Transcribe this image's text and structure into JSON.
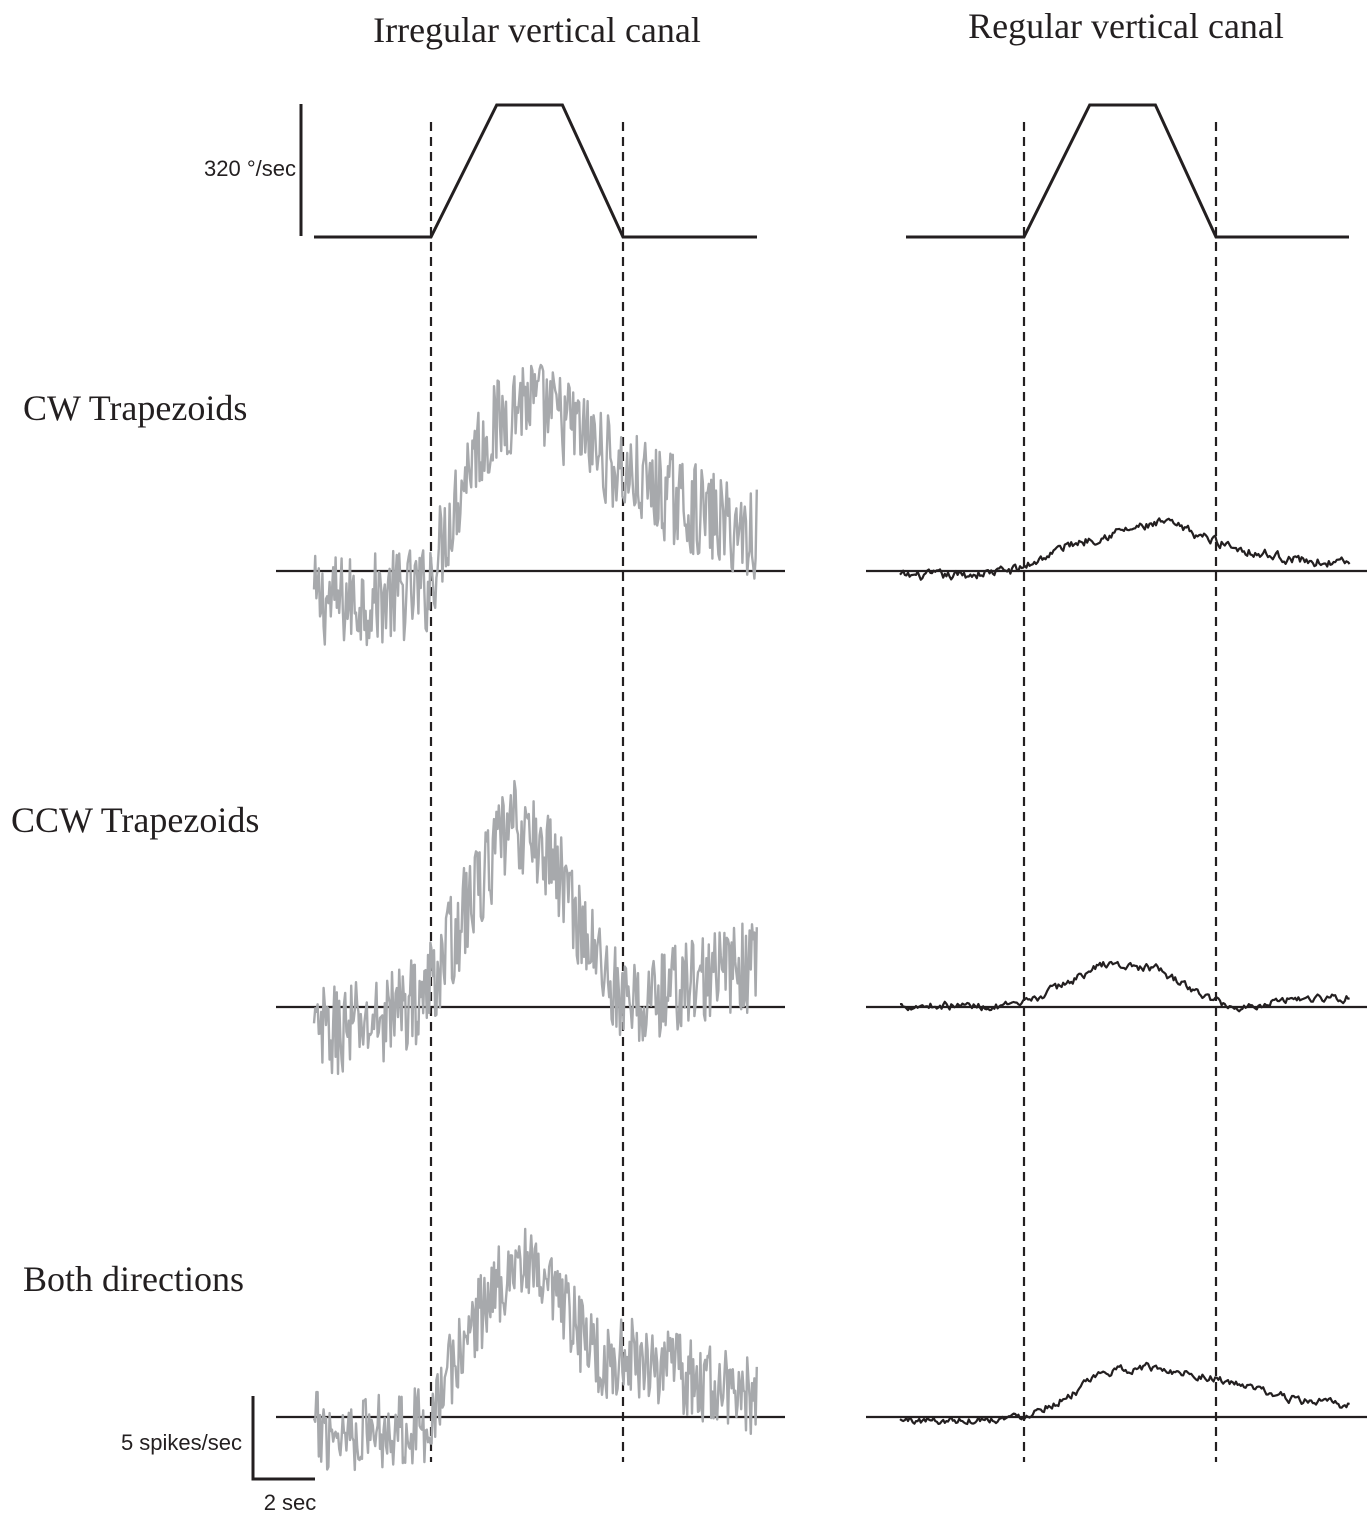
{
  "chart_data": {
    "type": "line",
    "columns": [
      {
        "title": "Irregular vertical canal",
        "trace_color": "#a7a9ac"
      },
      {
        "title": "Regular vertical canal",
        "trace_color": "#231f20"
      }
    ],
    "rows": [
      {
        "label": "CW Trapezoids"
      },
      {
        "label": "CCW Trapezoids"
      },
      {
        "label": "Both directions"
      }
    ],
    "stimulus": {
      "type": "trapezoid velocity profile",
      "peak_velocity": 320,
      "scale_label": "320 °/sec",
      "timeline_sec": [
        0,
        2.4,
        3.7,
        5.0,
        6.2,
        9.5
      ],
      "profile_velocity": [
        0,
        0,
        320,
        320,
        0,
        0
      ]
    },
    "scale_bars": {
      "rate_label": "5 spikes/sec",
      "rate_value": 5,
      "time_label": "2 sec",
      "time_value": 2
    },
    "traces": {
      "time_start_sec": 0,
      "time_end_sec": 9.5,
      "stimulus_onset_sec": 2.4,
      "stimulus_offset_sec": 6.2,
      "irregular": {
        "CW Trapezoids": {
          "t": [
            0,
            1,
            2.3,
            3.2,
            4.2,
            5.2,
            6.2,
            7.4,
            8.5,
            9.2
          ],
          "rate": [
            -1.8,
            -1.8,
            -1.2,
            7.0,
            10.5,
            8.8,
            5.8,
            4.0,
            2.4,
            2.2
          ],
          "noise": 2.8
        },
        "CCW Trapezoids": {
          "t": [
            0,
            1.2,
            2.3,
            3.2,
            4.0,
            4.8,
            5.5,
            6.3,
            7.4,
            8.6
          ],
          "rate": [
            -1.8,
            -1.0,
            0.8,
            6.5,
            11.0,
            9.0,
            4.0,
            -0.2,
            1.4,
            2.4
          ],
          "noise": 2.8
        },
        "Both directions": {
          "t": [
            0,
            1.2,
            2.3,
            3.3,
            4.1,
            5.0,
            5.8,
            6.6,
            7.6,
            9.0
          ],
          "rate": [
            -0.8,
            -0.8,
            -0.4,
            6.0,
            9.6,
            6.4,
            3.4,
            3.6,
            2.2,
            1.0
          ],
          "noise": 2.4
        }
      },
      "regular": {
        "CW Trapezoids": {
          "t": [
            0,
            1,
            2.3,
            3.3,
            4.3,
            5.2,
            6.0,
            7.0,
            8.0,
            9.2
          ],
          "rate": [
            -0.3,
            -0.3,
            0.1,
            1.6,
            2.4,
            2.9,
            2.0,
            1.1,
            0.6,
            0.4
          ],
          "noise": 0.55
        },
        "CCW Trapezoids": {
          "t": [
            0,
            1,
            2.3,
            3.2,
            4.0,
            5.0,
            6.0,
            6.6,
            7.6,
            9.2
          ],
          "rate": [
            0.1,
            0.1,
            0.0,
            1.4,
            2.6,
            2.3,
            0.6,
            -0.1,
            0.5,
            0.6
          ],
          "noise": 0.45
        },
        "Both directions": {
          "t": [
            0,
            1,
            2.3,
            3.2,
            4.0,
            4.8,
            5.8,
            6.8,
            7.8,
            9.2
          ],
          "rate": [
            -0.2,
            -0.2,
            0.0,
            1.1,
            2.7,
            3.0,
            2.6,
            1.8,
            1.0,
            0.6
          ],
          "noise": 0.45
        }
      }
    }
  }
}
